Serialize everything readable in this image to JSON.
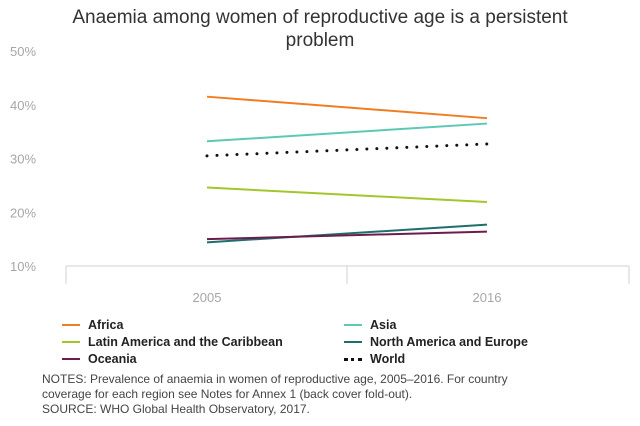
{
  "title": {
    "line1": "Anaemia among women of reproductive age is a persistent",
    "line2": "problem"
  },
  "chart_data": {
    "type": "line",
    "title": "Anaemia among women of reproductive age is a persistent problem",
    "xlabel": "",
    "ylabel": "",
    "x": [
      "2005",
      "2016"
    ],
    "ylim": [
      10,
      50
    ],
    "yticks": [
      10,
      20,
      30,
      40,
      50
    ],
    "ytick_labels": [
      "10%",
      "20%",
      "30%",
      "40%",
      "50%"
    ],
    "grid": false,
    "legend_position": "bottom",
    "series": [
      {
        "name": "Africa",
        "values": [
          41.5,
          37.5
        ],
        "color": "#f07d22",
        "style": "solid"
      },
      {
        "name": "Asia",
        "values": [
          33.2,
          36.5
        ],
        "color": "#5cc9b4",
        "style": "solid"
      },
      {
        "name": "Latin America and the Caribbean",
        "values": [
          24.6,
          21.9
        ],
        "color": "#a3c62b",
        "style": "solid"
      },
      {
        "name": "North America and Europe",
        "values": [
          14.4,
          17.7
        ],
        "color": "#1e6f6c",
        "style": "solid"
      },
      {
        "name": "Oceania",
        "values": [
          15.0,
          16.4
        ],
        "color": "#6b1e4d",
        "style": "solid"
      },
      {
        "name": "World",
        "values": [
          30.5,
          32.7
        ],
        "color": "#111111",
        "style": "dotted"
      }
    ]
  },
  "notes": {
    "line1": "NOTES: Prevalence of anaemia in women of reproductive age, 2005–2016. For country",
    "line2": "coverage for each region see Notes for Annex 1 (back cover fold-out).",
    "line3": "SOURCE: WHO Global Health Observatory, 2017."
  }
}
